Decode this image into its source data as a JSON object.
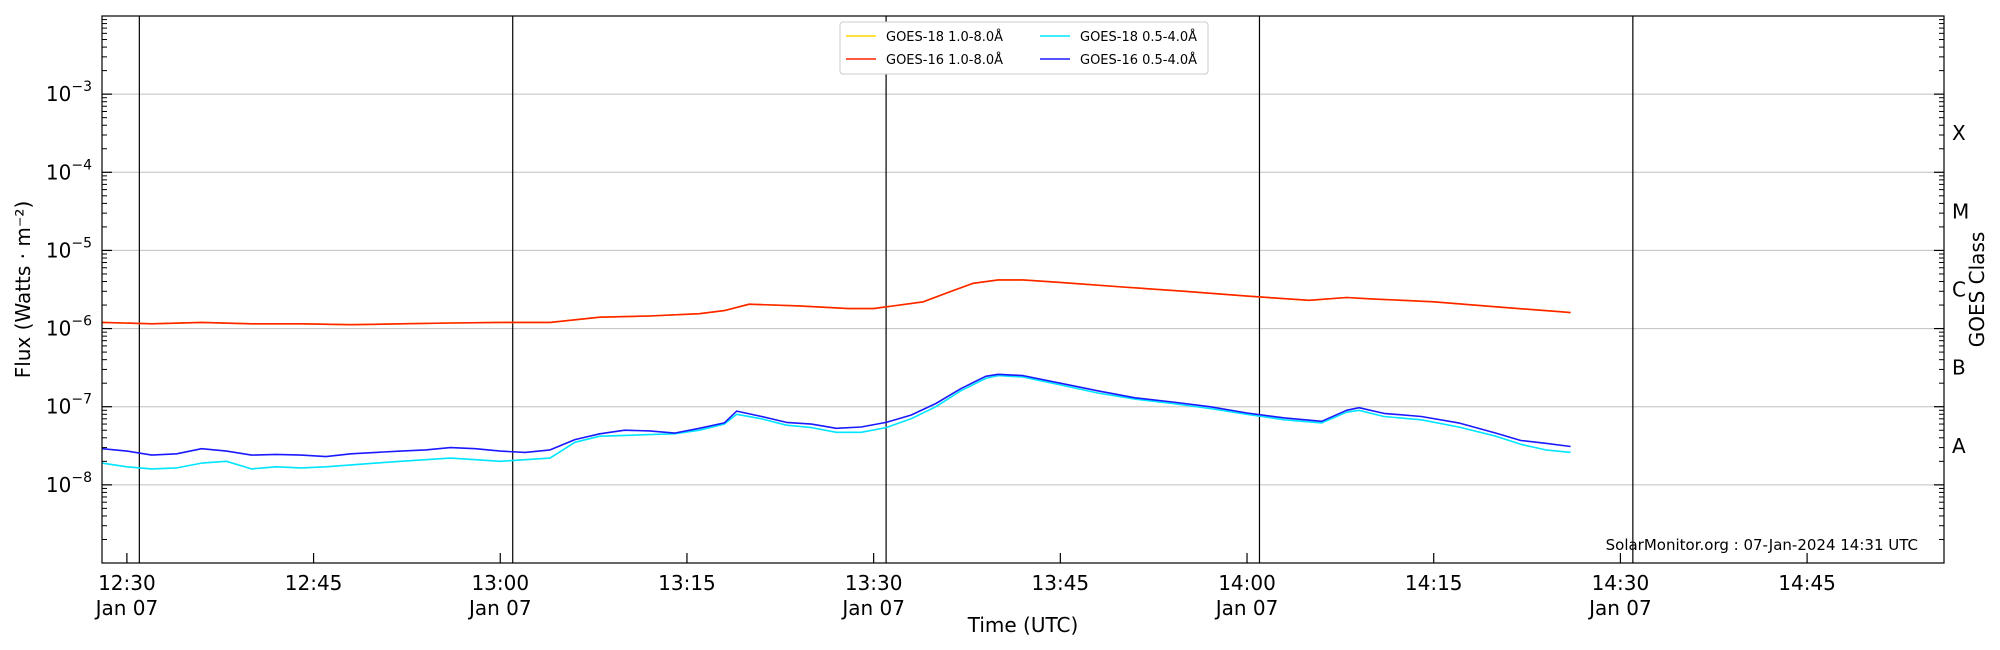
{
  "chart_data": {
    "type": "line",
    "title": "",
    "xlabel": "Time (UTC)",
    "ylabel": "Flux (Watts · m⁻²)",
    "y2label": "GOES Class",
    "yscale": "log",
    "xlim": [
      "12:28",
      "14:56"
    ],
    "ylim": [
      1e-09,
      0.01
    ],
    "grid": "horizontal",
    "legend_position": "top-center",
    "x_ticks": [
      {
        "t": "12:30",
        "label": "12:30",
        "sub": "Jan 07"
      },
      {
        "t": "12:45",
        "label": "12:45",
        "sub": ""
      },
      {
        "t": "13:00",
        "label": "13:00",
        "sub": "Jan 07"
      },
      {
        "t": "13:15",
        "label": "13:15",
        "sub": ""
      },
      {
        "t": "13:30",
        "label": "13:30",
        "sub": "Jan 07"
      },
      {
        "t": "13:45",
        "label": "13:45",
        "sub": ""
      },
      {
        "t": "14:00",
        "label": "14:00",
        "sub": "Jan 07"
      },
      {
        "t": "14:15",
        "label": "14:15",
        "sub": ""
      },
      {
        "t": "14:30",
        "label": "14:30",
        "sub": "Jan 07"
      },
      {
        "t": "14:45",
        "label": "14:45",
        "sub": ""
      }
    ],
    "vertical_markers": [
      "12:31",
      "13:01",
      "13:31",
      "14:01",
      "14:31"
    ],
    "y_ticks": [
      {
        "exp": -8,
        "label": "10",
        "sup": "−8"
      },
      {
        "exp": -7,
        "label": "10",
        "sup": "−7"
      },
      {
        "exp": -6,
        "label": "10",
        "sup": "−6"
      },
      {
        "exp": -5,
        "label": "10",
        "sup": "−5"
      },
      {
        "exp": -4,
        "label": "10",
        "sup": "−4"
      },
      {
        "exp": -3,
        "label": "10",
        "sup": "−3"
      }
    ],
    "class_labels": [
      {
        "label": "A",
        "exp": -7.5
      },
      {
        "label": "B",
        "exp": -6.5
      },
      {
        "label": "C",
        "exp": -5.5
      },
      {
        "label": "M",
        "exp": -4.5
      },
      {
        "label": "X",
        "exp": -3.5
      }
    ],
    "series": [
      {
        "name": "GOES-18 1.0-8.0Å",
        "color": "#ffd700",
        "x": [
          "12:28",
          "12:32",
          "12:36",
          "12:40",
          "12:44",
          "12:48",
          "12:52",
          "12:56",
          "13:00",
          "13:04",
          "13:08",
          "13:12",
          "13:16",
          "13:18",
          "13:20",
          "13:24",
          "13:28",
          "13:30",
          "13:34",
          "13:36",
          "13:38",
          "13:40",
          "13:42",
          "13:45",
          "13:50",
          "13:55",
          "14:00",
          "14:05",
          "14:08",
          "14:10",
          "14:15",
          "14:20",
          "14:25",
          "14:26"
        ],
        "y": [
          1.2e-06,
          1.15e-06,
          1.2e-06,
          1.15e-06,
          1.15e-06,
          1.12e-06,
          1.15e-06,
          1.18e-06,
          1.2e-06,
          1.2e-06,
          1.4e-06,
          1.45e-06,
          1.55e-06,
          1.7e-06,
          2.05e-06,
          1.95e-06,
          1.8e-06,
          1.8e-06,
          2.2e-06,
          2.9e-06,
          3.8e-06,
          4.2e-06,
          4.2e-06,
          3.9e-06,
          3.4e-06,
          3e-06,
          2.6e-06,
          2.3e-06,
          2.5e-06,
          2.4e-06,
          2.2e-06,
          1.9e-06,
          1.65e-06,
          1.6e-06
        ]
      },
      {
        "name": "GOES-16 1.0-8.0Å",
        "color": "#ff2200",
        "x": [
          "12:28",
          "12:32",
          "12:36",
          "12:40",
          "12:44",
          "12:48",
          "12:52",
          "12:56",
          "13:00",
          "13:04",
          "13:08",
          "13:12",
          "13:16",
          "13:18",
          "13:20",
          "13:24",
          "13:28",
          "13:30",
          "13:34",
          "13:36",
          "13:38",
          "13:40",
          "13:42",
          "13:45",
          "13:50",
          "13:55",
          "14:00",
          "14:05",
          "14:08",
          "14:10",
          "14:15",
          "14:20",
          "14:25",
          "14:26"
        ],
        "y": [
          1.2e-06,
          1.15e-06,
          1.2e-06,
          1.15e-06,
          1.15e-06,
          1.12e-06,
          1.15e-06,
          1.18e-06,
          1.2e-06,
          1.2e-06,
          1.4e-06,
          1.45e-06,
          1.55e-06,
          1.7e-06,
          2.05e-06,
          1.95e-06,
          1.8e-06,
          1.8e-06,
          2.2e-06,
          2.9e-06,
          3.8e-06,
          4.2e-06,
          4.2e-06,
          3.9e-06,
          3.4e-06,
          3e-06,
          2.6e-06,
          2.3e-06,
          2.5e-06,
          2.4e-06,
          2.2e-06,
          1.9e-06,
          1.65e-06,
          1.6e-06
        ]
      },
      {
        "name": "GOES-18 0.5-4.0Å",
        "color": "#00e5ff",
        "x": [
          "12:28",
          "12:30",
          "12:32",
          "12:34",
          "12:36",
          "12:38",
          "12:40",
          "12:42",
          "12:44",
          "12:46",
          "12:48",
          "12:50",
          "12:52",
          "12:54",
          "12:56",
          "12:58",
          "13:00",
          "13:02",
          "13:04",
          "13:06",
          "13:08",
          "13:10",
          "13:12",
          "13:14",
          "13:16",
          "13:18",
          "13:19",
          "13:21",
          "13:23",
          "13:25",
          "13:27",
          "13:29",
          "13:31",
          "13:33",
          "13:35",
          "13:37",
          "13:39",
          "13:40",
          "13:42",
          "13:45",
          "13:48",
          "13:51",
          "13:54",
          "13:57",
          "14:00",
          "14:03",
          "14:06",
          "14:08",
          "14:09",
          "14:11",
          "14:14",
          "14:17",
          "14:20",
          "14:22",
          "14:24",
          "14:26"
        ],
        "y": [
          1.9e-08,
          1.7e-08,
          1.6e-08,
          1.65e-08,
          1.9e-08,
          2e-08,
          1.6e-08,
          1.7e-08,
          1.65e-08,
          1.7e-08,
          1.8e-08,
          1.9e-08,
          2e-08,
          2.1e-08,
          2.2e-08,
          2.1e-08,
          2e-08,
          2.1e-08,
          2.2e-08,
          3.5e-08,
          4.2e-08,
          4.3e-08,
          4.4e-08,
          4.5e-08,
          5e-08,
          6e-08,
          8e-08,
          7e-08,
          5.8e-08,
          5.4e-08,
          4.7e-08,
          4.7e-08,
          5.4e-08,
          7e-08,
          1e-07,
          1.6e-07,
          2.3e-07,
          2.5e-07,
          2.4e-07,
          1.9e-07,
          1.5e-07,
          1.25e-07,
          1.1e-07,
          9.5e-08,
          8e-08,
          6.8e-08,
          6.2e-08,
          8.5e-08,
          9e-08,
          7.5e-08,
          6.8e-08,
          5.5e-08,
          4.2e-08,
          3.3e-08,
          2.8e-08,
          2.6e-08
        ]
      },
      {
        "name": "GOES-16 0.5-4.0Å",
        "color": "#1a1aff",
        "x": [
          "12:28",
          "12:30",
          "12:32",
          "12:34",
          "12:36",
          "12:38",
          "12:40",
          "12:42",
          "12:44",
          "12:46",
          "12:48",
          "12:50",
          "12:52",
          "12:54",
          "12:56",
          "12:58",
          "13:00",
          "13:02",
          "13:04",
          "13:06",
          "13:08",
          "13:10",
          "13:12",
          "13:14",
          "13:16",
          "13:18",
          "13:19",
          "13:21",
          "13:23",
          "13:25",
          "13:27",
          "13:29",
          "13:31",
          "13:33",
          "13:35",
          "13:37",
          "13:39",
          "13:40",
          "13:42",
          "13:45",
          "13:48",
          "13:51",
          "13:54",
          "13:57",
          "14:00",
          "14:03",
          "14:06",
          "14:08",
          "14:09",
          "14:11",
          "14:14",
          "14:17",
          "14:20",
          "14:22",
          "14:24",
          "14:26"
        ],
        "y": [
          2.9e-08,
          2.7e-08,
          2.4e-08,
          2.5e-08,
          2.9e-08,
          2.7e-08,
          2.4e-08,
          2.45e-08,
          2.4e-08,
          2.3e-08,
          2.5e-08,
          2.6e-08,
          2.7e-08,
          2.8e-08,
          3e-08,
          2.9e-08,
          2.7e-08,
          2.6e-08,
          2.8e-08,
          3.8e-08,
          4.5e-08,
          5e-08,
          4.9e-08,
          4.6e-08,
          5.3e-08,
          6.2e-08,
          8.8e-08,
          7.5e-08,
          6.3e-08,
          6e-08,
          5.3e-08,
          5.5e-08,
          6.3e-08,
          7.8e-08,
          1.1e-07,
          1.7e-07,
          2.45e-07,
          2.6e-07,
          2.5e-07,
          2e-07,
          1.6e-07,
          1.3e-07,
          1.15e-07,
          1e-07,
          8.3e-08,
          7.2e-08,
          6.5e-08,
          9e-08,
          9.7e-08,
          8.2e-08,
          7.5e-08,
          6.2e-08,
          4.6e-08,
          3.7e-08,
          3.4e-08,
          3.1e-08
        ]
      }
    ]
  },
  "credit": "SolarMonitor.org : 07-Jan-2024 14:31 UTC"
}
